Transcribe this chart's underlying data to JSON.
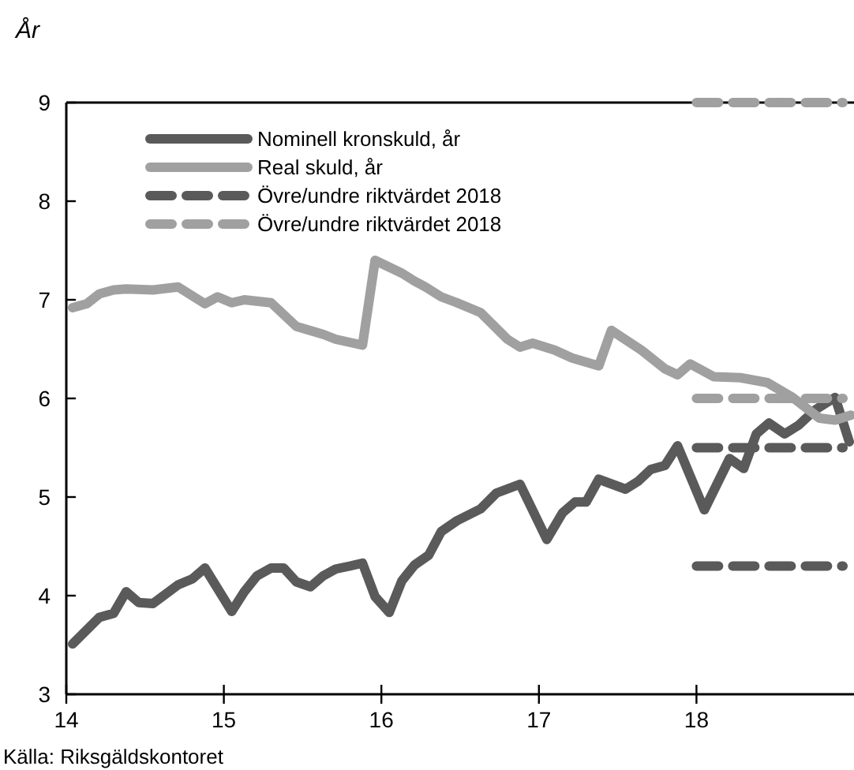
{
  "chart_data": {
    "type": "line",
    "ylabel": "År",
    "annotations": [
      "Källa: Riksgäldskontoret"
    ],
    "xlim": [
      14,
      19
    ],
    "xticks": [
      14,
      15,
      16,
      17,
      18
    ],
    "ylim": [
      3,
      9
    ],
    "yticks": [
      3,
      4,
      5,
      6,
      7,
      8,
      9
    ],
    "grid": false,
    "legend": "top left",
    "line_style": "solid",
    "marker": "none",
    "series": [
      {
        "name": "Nominell kronskuld, år",
        "color": "#5a5a5a",
        "x": [
          14.04,
          14.21,
          14.3,
          14.38,
          14.46,
          14.55,
          14.71,
          14.8,
          14.88,
          15.05,
          15.13,
          15.21,
          15.3,
          15.38,
          15.46,
          15.55,
          15.63,
          15.71,
          15.8,
          15.88,
          15.96,
          16.05,
          16.13,
          16.21,
          16.3,
          16.38,
          16.48,
          16.63,
          16.73,
          16.88,
          17.05,
          17.15,
          17.23,
          17.3,
          17.38,
          17.55,
          17.63,
          17.71,
          17.8,
          17.88,
          18.05,
          18.21,
          18.3,
          18.38,
          18.46,
          18.56,
          18.65,
          18.75,
          18.88,
          18.97
        ],
        "values": [
          3.51,
          3.78,
          3.82,
          4.04,
          3.93,
          3.92,
          4.11,
          4.17,
          4.28,
          3.84,
          4.04,
          4.2,
          4.28,
          4.28,
          4.14,
          4.09,
          4.2,
          4.27,
          4.3,
          4.33,
          3.99,
          3.83,
          4.15,
          4.31,
          4.41,
          4.65,
          4.76,
          4.88,
          5.04,
          5.13,
          4.57,
          4.84,
          4.95,
          4.95,
          5.18,
          5.08,
          5.16,
          5.28,
          5.32,
          5.52,
          4.87,
          5.39,
          5.29,
          5.64,
          5.75,
          5.64,
          5.73,
          5.88,
          6.01,
          5.56
        ]
      },
      {
        "name": "Real skuld, år",
        "color": "#a0a0a0",
        "x": [
          14.04,
          14.13,
          14.21,
          14.3,
          14.38,
          14.55,
          14.71,
          14.88,
          14.96,
          15.05,
          15.13,
          15.3,
          15.46,
          15.63,
          15.71,
          15.88,
          15.96,
          16.13,
          16.21,
          16.28,
          16.38,
          16.48,
          16.63,
          16.8,
          16.88,
          16.96,
          17.1,
          17.21,
          17.38,
          17.46,
          17.65,
          17.8,
          17.88,
          17.96,
          18.11,
          18.28,
          18.45,
          18.61,
          18.78,
          18.88,
          18.98
        ],
        "values": [
          6.92,
          6.96,
          7.06,
          7.1,
          7.11,
          7.1,
          7.13,
          6.96,
          7.03,
          6.97,
          7.0,
          6.97,
          6.73,
          6.65,
          6.6,
          6.54,
          7.4,
          7.27,
          7.19,
          7.13,
          7.03,
          6.97,
          6.87,
          6.6,
          6.52,
          6.56,
          6.49,
          6.41,
          6.33,
          6.69,
          6.49,
          6.3,
          6.24,
          6.35,
          6.22,
          6.21,
          6.16,
          6.01,
          5.8,
          5.78,
          5.83
        ]
      },
      {
        "name": "Övre/undre riktvärdet 2018",
        "color": "#5a5a5a",
        "line_style": "dashed",
        "x": [
          18.0,
          18.93
        ],
        "values": [
          5.5,
          5.5
        ]
      },
      {
        "name": "Övre/undre riktvärdet 2018",
        "color": "#a0a0a0",
        "line_style": "dashed",
        "x": [
          18.0,
          18.93
        ],
        "values": [
          9.0,
          9.0
        ]
      },
      {
        "color": "#5a5a5a",
        "line_style": "dashed",
        "x": [
          18.0,
          18.93
        ],
        "values": [
          4.3,
          4.3
        ]
      },
      {
        "color": "#a0a0a0",
        "line_style": "dashed",
        "x": [
          18.0,
          18.93
        ],
        "values": [
          6.0,
          6.0
        ]
      }
    ]
  }
}
